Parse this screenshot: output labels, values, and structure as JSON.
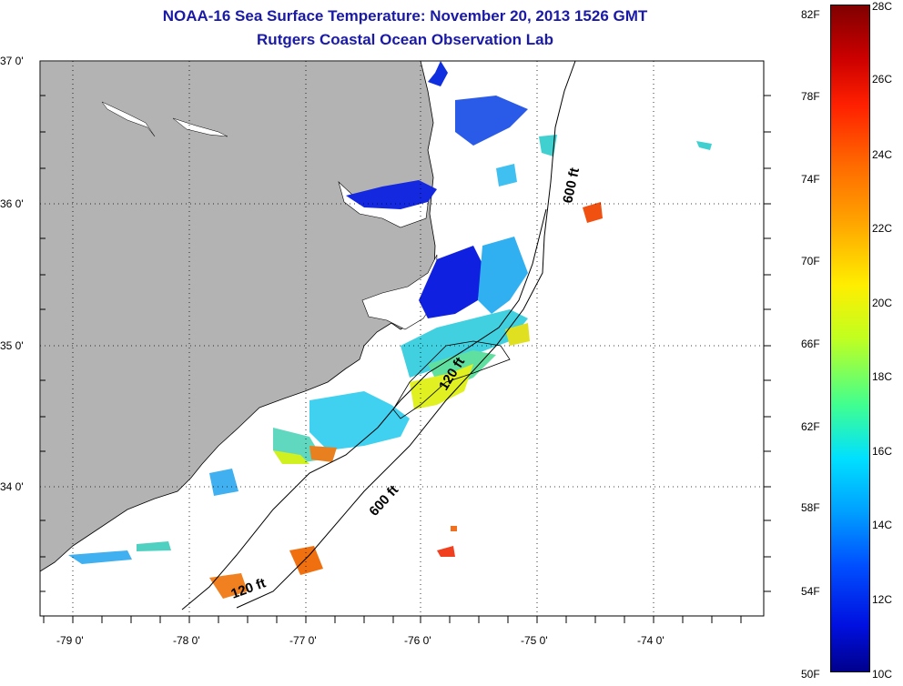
{
  "header": {
    "title": "NOAA-16 Sea Surface Temperature:  November 20, 2013 1526 GMT",
    "subtitle": "Rutgers Coastal Ocean Observation Lab"
  },
  "map": {
    "lat_labels": [
      "37 0'",
      "36 0'",
      "35 0'",
      "34 0'"
    ],
    "lon_labels": [
      "-79 0'",
      "-78 0'",
      "-77 0'",
      "-76 0'",
      "-75 0'",
      "-74 0'"
    ],
    "contour_labels": [
      "600 ft",
      "120 ft",
      "600 ft",
      "120 ft"
    ],
    "colors": {
      "land": "#b3b3b3",
      "ocean_nodata": "#ffffff",
      "contour": "#000000"
    }
  },
  "colorbar": {
    "fahrenheit_labels": [
      "82F",
      "78F",
      "74F",
      "70F",
      "66F",
      "62F",
      "58F",
      "54F",
      "50F"
    ],
    "celsius_labels": [
      "28C",
      "26C",
      "24C",
      "22C",
      "20C",
      "18C",
      "16C",
      "14C",
      "12C",
      "10C"
    ]
  }
}
